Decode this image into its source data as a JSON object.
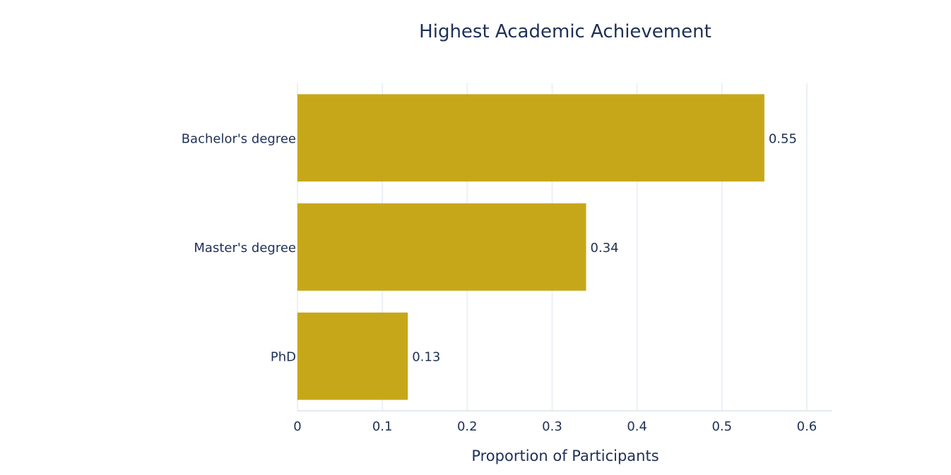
{
  "chart_data": {
    "type": "bar",
    "orientation": "horizontal",
    "title": "Highest Academic Achievement",
    "xlabel": "Proportion of Participants",
    "ylabel": "",
    "categories": [
      "Bachelor's degree",
      "Master's degree",
      "PhD"
    ],
    "values": [
      0.55,
      0.34,
      0.13
    ],
    "data_labels": [
      "0.55",
      "0.34",
      "0.13"
    ],
    "xlim": [
      0,
      0.63
    ],
    "xticks": [
      0,
      0.1,
      0.2,
      0.3,
      0.4,
      0.5,
      0.6
    ],
    "xtick_labels": [
      "0",
      "0.1",
      "0.2",
      "0.3",
      "0.4",
      "0.5",
      "0.6"
    ],
    "grid": true,
    "legend": "none",
    "colors": {
      "bar": "#c7a71a",
      "grid": "#ebf0f8",
      "axis_line": "#e3e9f2",
      "text": "#1f3056"
    }
  }
}
